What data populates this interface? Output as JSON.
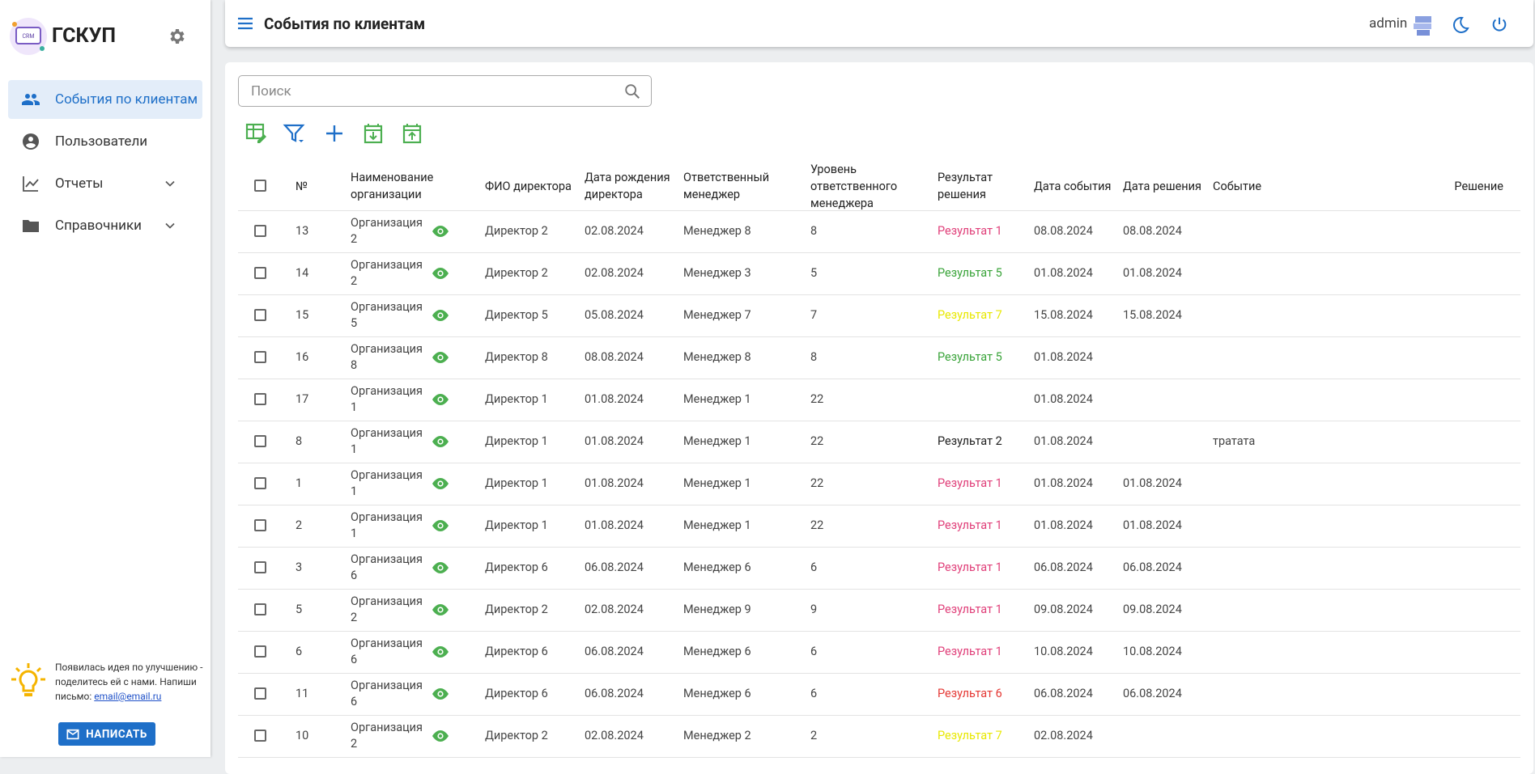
{
  "sidebar": {
    "brand": "ГСКУП",
    "nav": [
      "События по клиентам",
      "Пользователи",
      "Отчеты",
      "Справочники"
    ],
    "idea_text": "Появилась идея по улучшению - поделитесь ей с нами. Напиши письмо:",
    "email": "email@email.ru",
    "button": "НАПИСАТЬ"
  },
  "header": {
    "title": "События по клиентам",
    "user": "admin"
  },
  "search": {
    "placeholder": "Поиск"
  },
  "table": {
    "columns": [
      "№",
      "Наименование организации",
      "ФИО директора",
      "Дата рождения директора",
      "Ответственный менеджер",
      "Уровень ответственного менеджера",
      "Результат решения",
      "Дата события",
      "Дата решения",
      "Событие",
      "Решение"
    ],
    "rows": [
      {
        "no": "13",
        "org": "Организация 2",
        "director": "Директор 2",
        "birth": "02.08.2024",
        "manager": "Менеджер 8",
        "level": "8",
        "result": "Результат 1",
        "result_color": "#e0407a",
        "event_date": "08.08.2024",
        "decision_date": "08.08.2024"
      },
      {
        "no": "14",
        "org": "Организация 2",
        "director": "Директор 2",
        "birth": "02.08.2024",
        "manager": "Менеджер 3",
        "level": "5",
        "result": "Результат 5",
        "result_color": "#3aa43a",
        "event_date": "01.08.2024",
        "decision_date": "01.08.2024"
      },
      {
        "no": "15",
        "org": "Организация 5",
        "director": "Директор 5",
        "birth": "05.08.2024",
        "manager": "Менеджер 7",
        "level": "7",
        "result": "Результат 7",
        "result_color": "#e8e800",
        "event_date": "15.08.2024",
        "decision_date": "15.08.2024"
      },
      {
        "no": "16",
        "org": "Организация 8",
        "director": "Директор 8",
        "birth": "08.08.2024",
        "manager": "Менеджер 8",
        "level": "8",
        "result": "Результат 5",
        "result_color": "#3aa43a",
        "event_date": "01.08.2024"
      },
      {
        "no": "17",
        "org": "Организация 1",
        "director": "Директор 1",
        "birth": "01.08.2024",
        "manager": "Менеджер 1",
        "level": "22",
        "event_date": "01.08.2024"
      },
      {
        "no": "8",
        "org": "Организация 1",
        "director": "Директор 1",
        "birth": "01.08.2024",
        "manager": "Менеджер 1",
        "level": "22",
        "result": "Результат 2",
        "result_color": "#222222",
        "event_date": "01.08.2024",
        "event": "тратата"
      },
      {
        "no": "1",
        "org": "Организация 1",
        "director": "Директор 1",
        "birth": "01.08.2024",
        "manager": "Менеджер 1",
        "level": "22",
        "result": "Результат 1",
        "result_color": "#e0407a",
        "event_date": "01.08.2024",
        "decision_date": "01.08.2024"
      },
      {
        "no": "2",
        "org": "Организация 1",
        "director": "Директор 1",
        "birth": "01.08.2024",
        "manager": "Менеджер 1",
        "level": "22",
        "result": "Результат 1",
        "result_color": "#e0407a",
        "event_date": "01.08.2024",
        "decision_date": "01.08.2024"
      },
      {
        "no": "3",
        "org": "Организация 6",
        "director": "Директор 6",
        "birth": "06.08.2024",
        "manager": "Менеджер 6",
        "level": "6",
        "result": "Результат 1",
        "result_color": "#e0407a",
        "event_date": "06.08.2024",
        "decision_date": "06.08.2024"
      },
      {
        "no": "5",
        "org": "Организация 2",
        "director": "Директор 2",
        "birth": "02.08.2024",
        "manager": "Менеджер 9",
        "level": "9",
        "result": "Результат 1",
        "result_color": "#e0407a",
        "event_date": "09.08.2024",
        "decision_date": "09.08.2024"
      },
      {
        "no": "6",
        "org": "Организация 6",
        "director": "Директор 6",
        "birth": "06.08.2024",
        "manager": "Менеджер 6",
        "level": "6",
        "result": "Результат 1",
        "result_color": "#e0407a",
        "event_date": "10.08.2024",
        "decision_date": "10.08.2024"
      },
      {
        "no": "11",
        "org": "Организация 6",
        "director": "Директор 6",
        "birth": "06.08.2024",
        "manager": "Менеджер 6",
        "level": "6",
        "result": "Результат 6",
        "result_color": "#e53935",
        "event_date": "06.08.2024",
        "decision_date": "06.08.2024"
      },
      {
        "no": "10",
        "org": "Организация 2",
        "director": "Директор 2",
        "birth": "02.08.2024",
        "manager": "Менеджер 2",
        "level": "2",
        "result": "Результат 7",
        "result_color": "#e8e800",
        "event_date": "02.08.2024"
      }
    ]
  }
}
